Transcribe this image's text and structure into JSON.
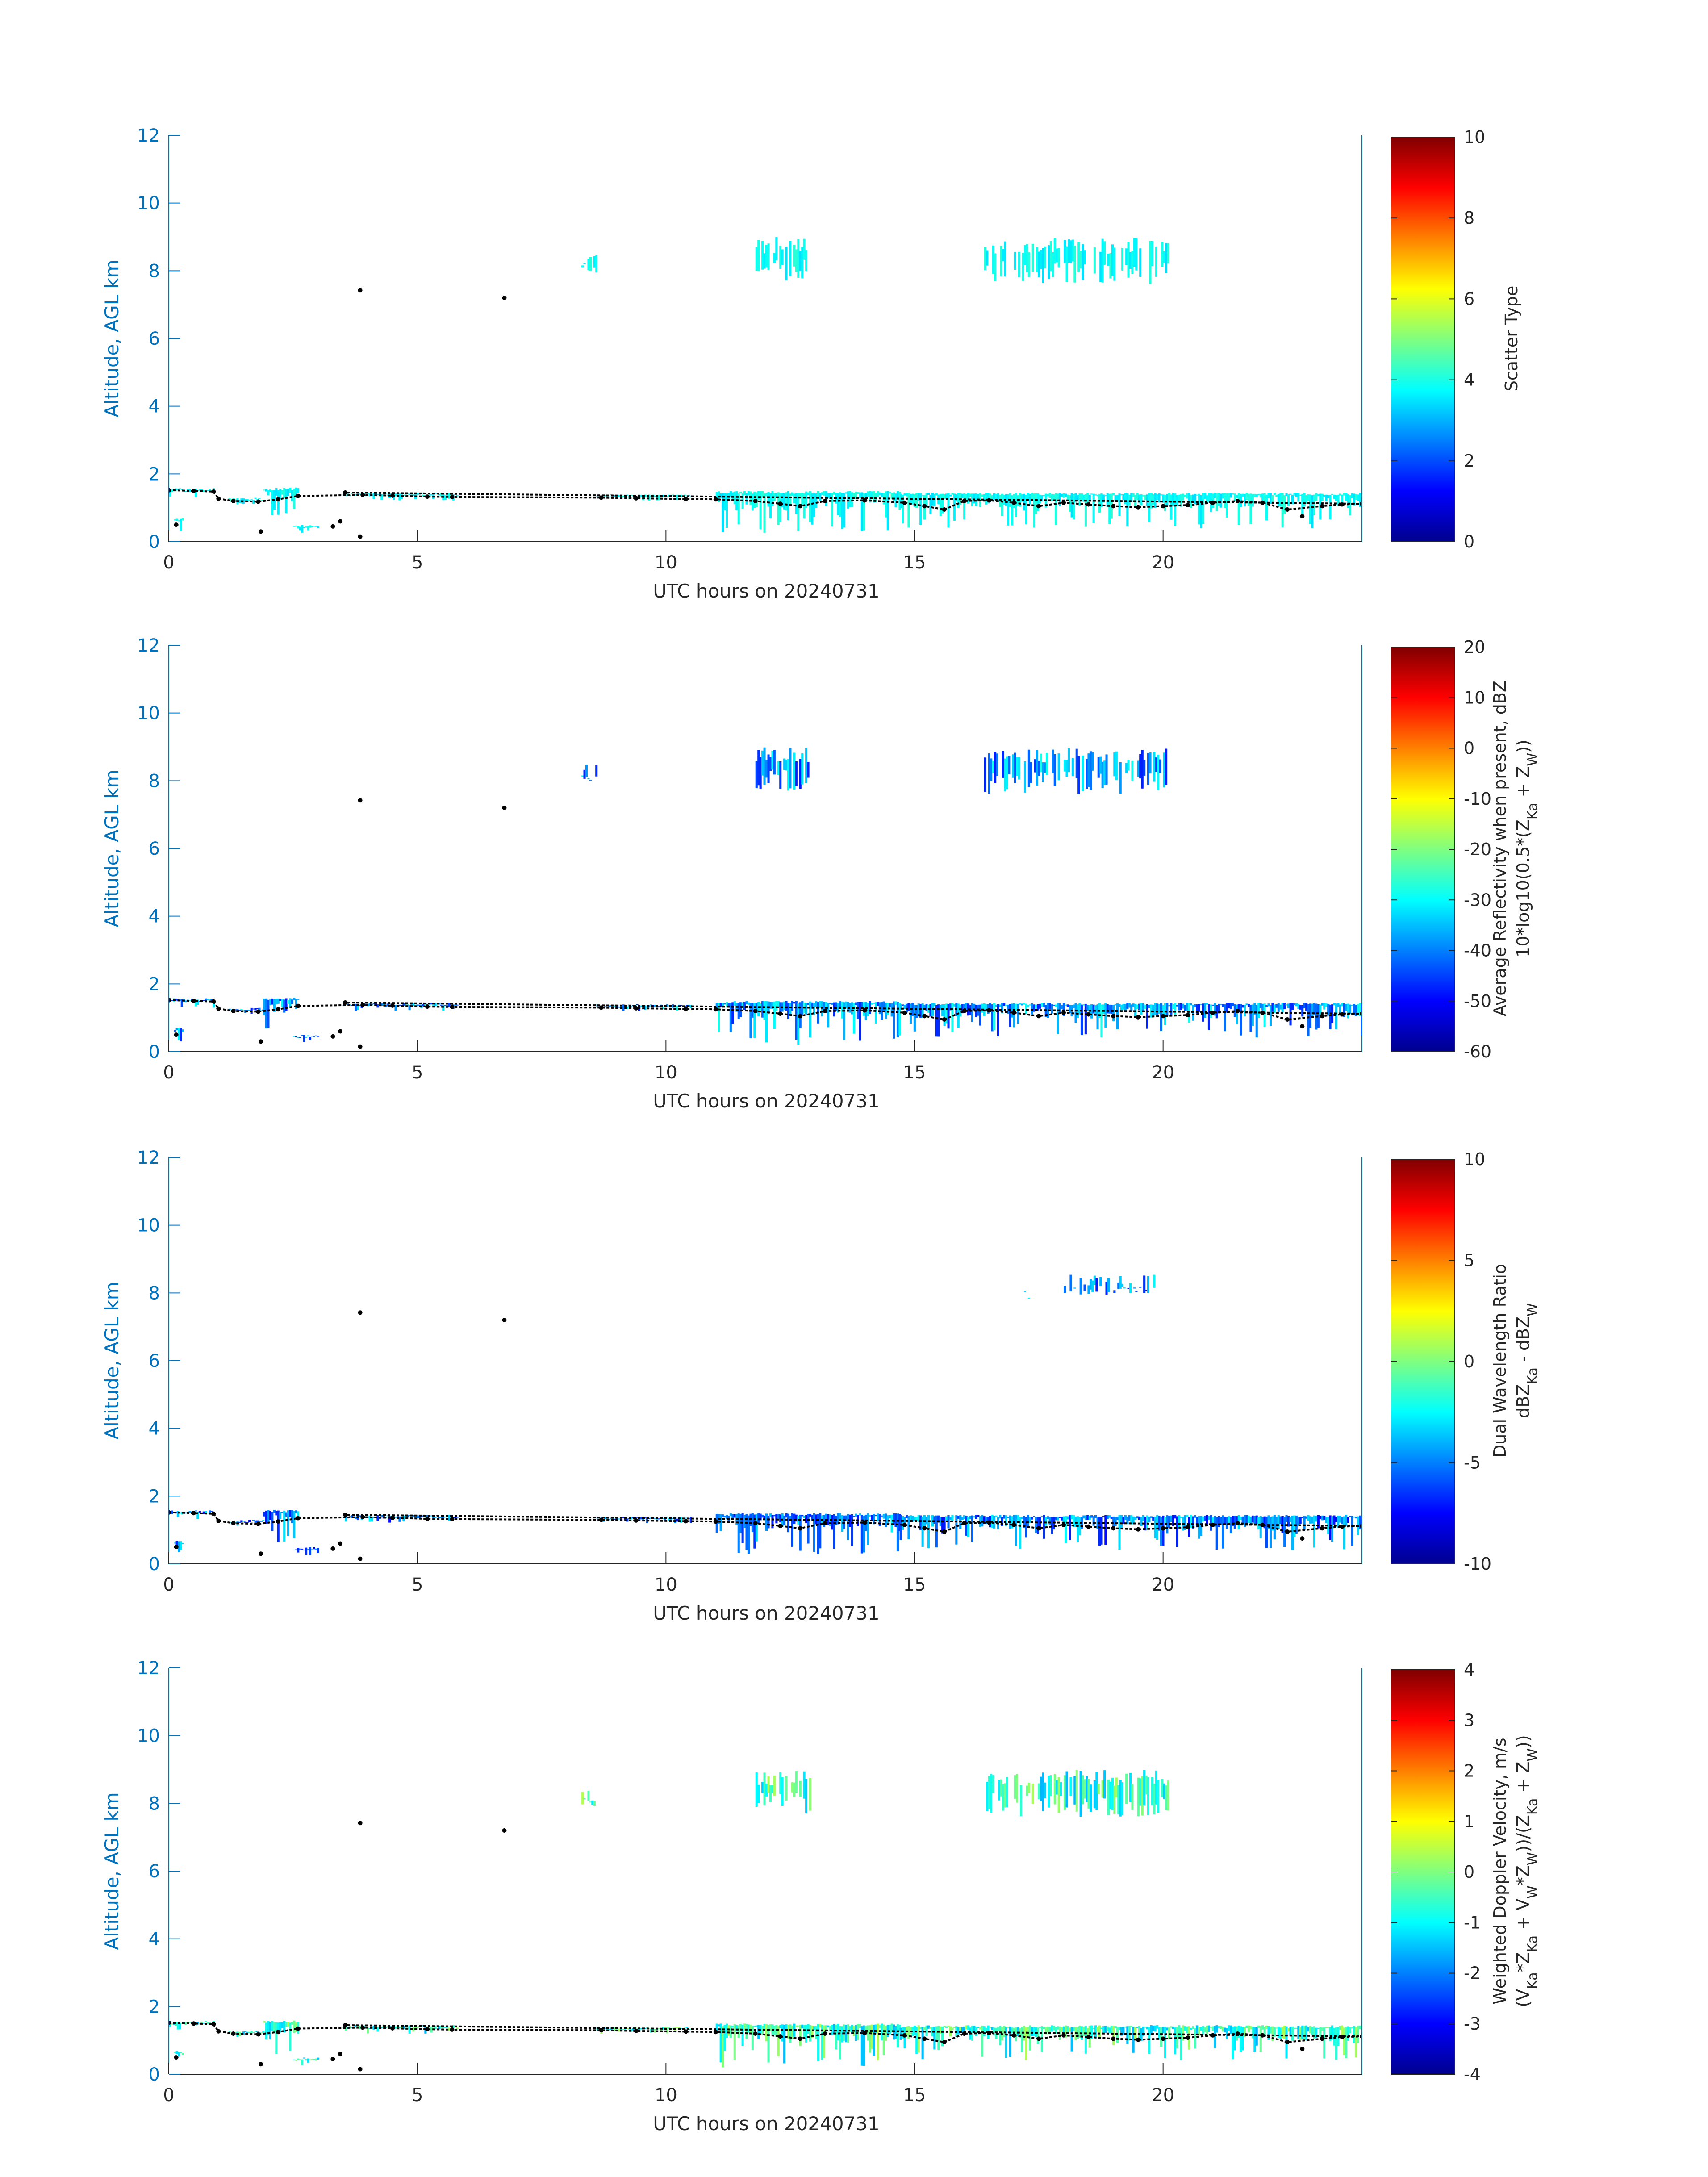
{
  "chart_data": [
    {
      "type": "heatmap",
      "xlabel": "UTC hours on 20240731",
      "ylabel": "Altitude, AGL km",
      "xlim": [
        0,
        24
      ],
      "ylim": [
        0,
        12
      ],
      "xticks": [
        "0",
        "5",
        "10",
        "15",
        "20"
      ],
      "yticks": [
        "0",
        "2",
        "4",
        "6",
        "8",
        "10",
        "12"
      ],
      "colorbar": {
        "label_lines": [
          "Scatter Type"
        ],
        "clim": [
          0,
          10
        ],
        "ticks": [
          "0",
          "2",
          "4",
          "6",
          "8",
          "10"
        ],
        "colormap": "jet"
      },
      "fill_value": 3.8
    },
    {
      "type": "heatmap",
      "xlabel": "UTC hours on 20240731",
      "ylabel": "Altitude, AGL km",
      "xlim": [
        0,
        24
      ],
      "ylim": [
        0,
        12
      ],
      "xticks": [
        "0",
        "5",
        "10",
        "15",
        "20"
      ],
      "yticks": [
        "0",
        "2",
        "4",
        "6",
        "8",
        "10",
        "12"
      ],
      "colorbar": {
        "label_lines": [
          "Average Reflectivity when present, dBZ",
          "10*log10(0.5*(Z_Ka + Z_W))"
        ],
        "clim": [
          -60,
          20
        ],
        "ticks": [
          "-60",
          "-50",
          "-40",
          "-30",
          "-20",
          "-10",
          "0",
          "10",
          "20"
        ],
        "colormap": "jet"
      },
      "fill_value": -38
    },
    {
      "type": "heatmap",
      "xlabel": "UTC hours on 20240731",
      "ylabel": "Altitude, AGL km",
      "xlim": [
        0,
        24
      ],
      "ylim": [
        0,
        12
      ],
      "xticks": [
        "0",
        "5",
        "10",
        "15",
        "20"
      ],
      "yticks": [
        "0",
        "2",
        "4",
        "6",
        "8",
        "10",
        "12"
      ],
      "colorbar": {
        "label_lines": [
          "Dual Wavelength Ratio",
          "dBZ_Ka - dBZ_W"
        ],
        "clim": [
          -10,
          10
        ],
        "ticks": [
          "-10",
          "-5",
          "0",
          "5",
          "10"
        ],
        "colormap": "jet"
      },
      "fill_value": -5
    },
    {
      "type": "heatmap",
      "xlabel": "UTC hours on 20240731",
      "ylabel": "Altitude, AGL km",
      "xlim": [
        0,
        24
      ],
      "ylim": [
        0,
        12
      ],
      "xticks": [
        "0",
        "5",
        "10",
        "15",
        "20"
      ],
      "yticks": [
        "0",
        "2",
        "4",
        "6",
        "8",
        "10",
        "12"
      ],
      "colorbar": {
        "label_lines": [
          "Weighted Doppler Velocity, m/s",
          "(V_Ka*Z_Ka + V_W*Z_W))/(Z_Ka + Z_W))"
        ],
        "clim": [
          -4,
          4
        ],
        "ticks": [
          "-4",
          "-3",
          "-2",
          "-1",
          "0",
          "1",
          "2",
          "3",
          "4"
        ],
        "colormap": "jet"
      },
      "fill_value": -0.6
    }
  ],
  "cloud_regions": [
    {
      "t": [
        0.0,
        0.9
      ],
      "base": 1.3,
      "top": 1.58
    },
    {
      "t": [
        1.2,
        1.9
      ],
      "base": 1.1,
      "top": 1.3
    },
    {
      "t": [
        1.9,
        2.6
      ],
      "base": 0.6,
      "top": 1.6
    },
    {
      "t": [
        3.5,
        5.8
      ],
      "base": 1.2,
      "top": 1.45
    },
    {
      "t": [
        8.6,
        10.5
      ],
      "base": 1.2,
      "top": 1.4
    },
    {
      "t": [
        11.0,
        14.7
      ],
      "base": 0.2,
      "top": 1.5
    },
    {
      "t": [
        14.7,
        24.0
      ],
      "base": 0.4,
      "top": 1.45
    },
    {
      "t": [
        8.3,
        8.6
      ],
      "base": 7.9,
      "top": 8.5
    },
    {
      "t": [
        11.8,
        12.9
      ],
      "base": 7.7,
      "top": 9.0
    },
    {
      "t": [
        16.4,
        20.1
      ],
      "base": 7.6,
      "top": 9.0
    },
    {
      "t": [
        0.1,
        0.3
      ],
      "base": 0.3,
      "top": 0.7
    },
    {
      "t": [
        2.5,
        3.0
      ],
      "base": 0.25,
      "top": 0.5
    }
  ],
  "dwr_upper_regions": [
    {
      "t": [
        17.2,
        17.3
      ],
      "base": 8.1,
      "top": 8.3
    },
    {
      "t": [
        18.0,
        19.8
      ],
      "base": 7.95,
      "top": 8.55
    }
  ],
  "cloud_base_points": [
    [
      0.0,
      1.52
    ],
    [
      0.5,
      1.5
    ],
    [
      0.9,
      1.48
    ],
    [
      1.0,
      1.27
    ],
    [
      1.3,
      1.2
    ],
    [
      1.8,
      1.18
    ],
    [
      2.2,
      1.25
    ],
    [
      2.6,
      1.35
    ],
    [
      3.9,
      1.38
    ],
    [
      4.5,
      1.36
    ],
    [
      5.2,
      1.33
    ],
    [
      5.7,
      1.32
    ],
    [
      8.7,
      1.3
    ],
    [
      9.4,
      1.28
    ],
    [
      10.4,
      1.26
    ],
    [
      11.0,
      1.25
    ],
    [
      11.8,
      1.2
    ],
    [
      12.3,
      1.12
    ],
    [
      12.7,
      1.05
    ],
    [
      13.2,
      1.2
    ],
    [
      14.0,
      1.22
    ],
    [
      14.8,
      1.15
    ],
    [
      15.2,
      1.05
    ],
    [
      15.6,
      0.95
    ],
    [
      16.0,
      1.2
    ],
    [
      16.5,
      1.22
    ],
    [
      17.0,
      1.15
    ],
    [
      17.5,
      1.05
    ],
    [
      18.0,
      1.15
    ],
    [
      18.5,
      1.1
    ],
    [
      19.0,
      1.05
    ],
    [
      19.5,
      1.02
    ],
    [
      20.0,
      1.05
    ],
    [
      20.5,
      1.08
    ],
    [
      21.0,
      1.15
    ],
    [
      21.5,
      1.2
    ],
    [
      22.0,
      1.15
    ],
    [
      22.5,
      0.95
    ],
    [
      22.8,
      0.75
    ],
    [
      23.2,
      1.05
    ],
    [
      23.6,
      1.1
    ],
    [
      24.0,
      1.12
    ],
    [
      3.85,
      7.42
    ],
    [
      6.75,
      7.2
    ],
    [
      3.85,
      0.15
    ],
    [
      0.15,
      0.5
    ],
    [
      1.85,
      0.3
    ],
    [
      3.3,
      0.45
    ],
    [
      3.45,
      0.6
    ],
    [
      3.55,
      1.45
    ]
  ]
}
